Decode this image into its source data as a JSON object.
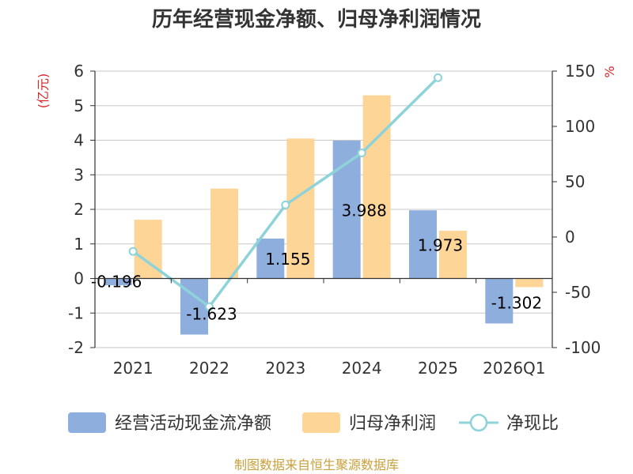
{
  "title": "历年经营现金净额、归母净利润情况",
  "source": "制图数据来自恒生聚源数据库",
  "chart_data": {
    "type": "bar",
    "categories": [
      "2021",
      "2022",
      "2023",
      "2024",
      "2025",
      "2026Q1"
    ],
    "series": [
      {
        "name": "经营活动现金流净额",
        "kind": "bar",
        "axis": "left",
        "color": "#8eaedd",
        "values": [
          -0.196,
          -1.623,
          1.155,
          3.988,
          1.973,
          -1.302
        ],
        "labels": [
          "-0.196",
          "-1.623",
          "1.155",
          "3.988",
          "1.973",
          "-1.302"
        ]
      },
      {
        "name": "归母净利润",
        "kind": "bar",
        "axis": "left",
        "color": "#fdd597",
        "values": [
          1.7,
          2.6,
          4.05,
          5.3,
          1.38,
          -0.25
        ]
      },
      {
        "name": "净现比",
        "kind": "line",
        "axis": "right",
        "color": "#8dd3d9",
        "values": [
          -13,
          -63,
          29,
          76,
          144,
          null
        ]
      }
    ],
    "y_left": {
      "unit": "(亿元)",
      "min": -2,
      "max": 6,
      "ticks": [
        "-2",
        "-1",
        "0",
        "1",
        "2",
        "3",
        "4",
        "5",
        "6"
      ]
    },
    "y_right": {
      "unit": "%",
      "min": -100,
      "max": 150,
      "ticks": [
        "-100",
        "-50",
        "0",
        "50",
        "100",
        "150"
      ]
    },
    "grid": true,
    "legend_position": "bottom"
  }
}
